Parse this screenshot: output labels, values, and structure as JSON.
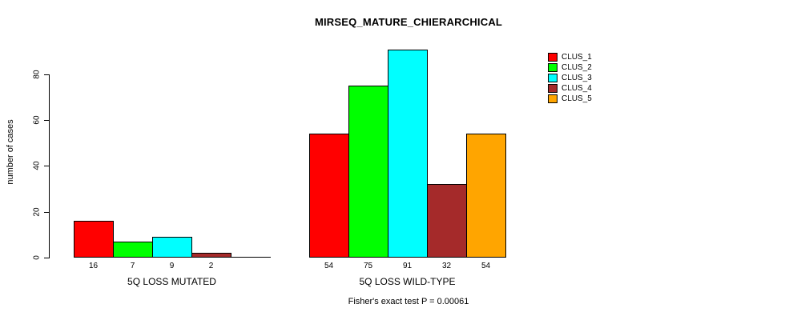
{
  "chart_data": {
    "type": "bar",
    "title": "MIRSEQ_MATURE_CHIERARCHICAL",
    "ylabel": "number of cases",
    "xlabel": "",
    "ylim": [
      0,
      91
    ],
    "yticks": [
      0,
      20,
      40,
      60,
      80
    ],
    "grid": false,
    "legend_position": "top-right-outside",
    "annotation": "Fisher's exact test P = 0.00061",
    "categories": [
      "5Q LOSS MUTATED",
      "5Q LOSS WILD-TYPE"
    ],
    "series": [
      {
        "name": "CLUS_1",
        "color": "#FF0000",
        "values": [
          16,
          54
        ]
      },
      {
        "name": "CLUS_2",
        "color": "#00FF00",
        "values": [
          7,
          75
        ]
      },
      {
        "name": "CLUS_3",
        "color": "#00FFFF",
        "values": [
          9,
          91
        ]
      },
      {
        "name": "CLUS_4",
        "color": "#A52A2A",
        "values": [
          2,
          32
        ]
      },
      {
        "name": "CLUS_5",
        "color": "#FFA500",
        "values": [
          0,
          54
        ]
      }
    ],
    "bar_value_labels": [
      [
        "16",
        "7",
        "9",
        "2",
        ""
      ],
      [
        "54",
        "75",
        "91",
        "32",
        "54"
      ]
    ],
    "colors": {
      "background": "#FFFFFF",
      "axis": "#000000",
      "text": "#000000",
      "bar_border": "#000000"
    }
  }
}
